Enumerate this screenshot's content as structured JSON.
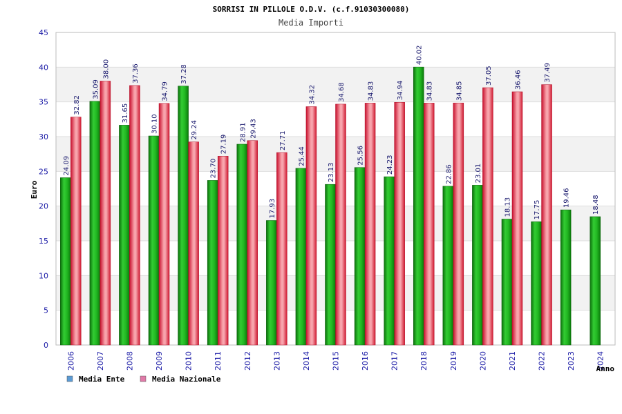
{
  "chart_data": {
    "type": "bar",
    "title": "SORRISI IN PILLOLE O.D.V. (c.f.91030300080)",
    "subtitle": "Media Importi",
    "xlabel": "Anno",
    "ylabel": "Euro",
    "ylim": [
      0,
      45
    ],
    "yticks": [
      0,
      5,
      10,
      15,
      20,
      25,
      30,
      35,
      40,
      45
    ],
    "grid": true,
    "legend_position": "bottom-left",
    "categories": [
      "2006",
      "2007",
      "2008",
      "2009",
      "2010",
      "2011",
      "2012",
      "2013",
      "2014",
      "2015",
      "2016",
      "2017",
      "2018",
      "2019",
      "2020",
      "2021",
      "2022",
      "2023",
      "2024"
    ],
    "series": [
      {
        "name": "Media Ente",
        "color": "#1a9e1a",
        "legend_color": "#5b9bd5",
        "values": [
          24.09,
          35.09,
          31.65,
          30.1,
          37.28,
          23.7,
          28.91,
          17.93,
          25.44,
          23.13,
          25.56,
          24.23,
          40.02,
          22.86,
          23.01,
          18.13,
          17.75,
          19.46,
          18.48
        ],
        "labels": [
          "24.09",
          "35.09",
          "31.65",
          "30.10",
          "37.28",
          "23.70",
          "28.91",
          "17.93",
          "25.44",
          "23.13",
          "25.56",
          "24.23",
          "40.02",
          "22.86",
          "23.01",
          "18.13",
          "17.75",
          "19.46",
          "18.48"
        ]
      },
      {
        "name": "Media Nazionale",
        "color": "#e0303a",
        "legend_color": "#e07aa8",
        "values": [
          32.82,
          38.0,
          37.36,
          34.79,
          29.24,
          27.19,
          29.43,
          27.71,
          34.32,
          34.68,
          34.83,
          34.94,
          34.83,
          34.85,
          37.05,
          36.46,
          37.49,
          null,
          null
        ],
        "labels": [
          "32.82",
          "38.00",
          "37.36",
          "34.79",
          "29.24",
          "27.19",
          "29.43",
          "27.71",
          "34.32",
          "34.68",
          "34.83",
          "34.94",
          "34.83",
          "34.85",
          "37.05",
          "36.46",
          "37.49",
          null,
          null
        ]
      }
    ]
  }
}
